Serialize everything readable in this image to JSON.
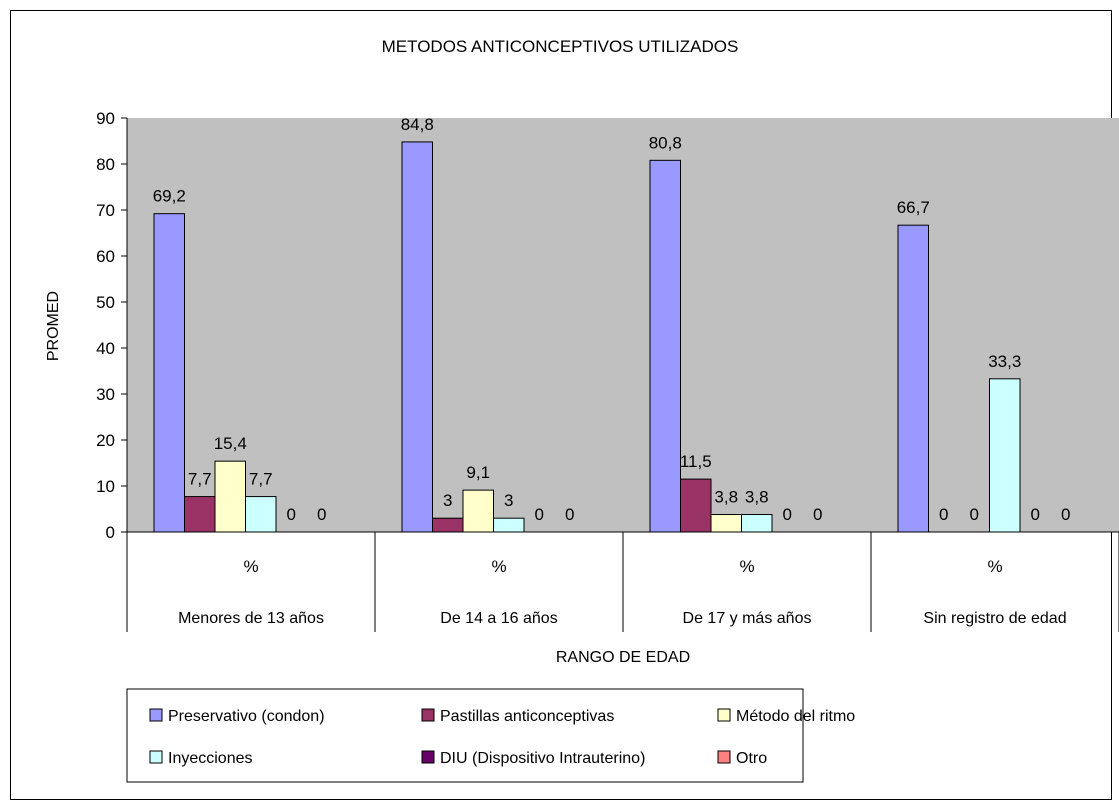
{
  "chart_data": {
    "type": "bar",
    "title": "METODOS ANTICONCEPTIVOS UTILIZADOS",
    "xlabel": "RANGO DE EDAD",
    "ylabel": "PROMED",
    "ylim": [
      0,
      90
    ],
    "yticks": [
      0,
      10,
      20,
      30,
      40,
      50,
      60,
      70,
      80,
      90
    ],
    "plot_background": "#c0c0c0",
    "grid": false,
    "legend_position": "bottom",
    "category_sublabels": [
      "%",
      "%",
      "%",
      "%"
    ],
    "categories": [
      "Menores de 13 años",
      "De 14 a 16 años",
      "De 17 y más años",
      "Sin registro de  edad"
    ],
    "series": [
      {
        "name": "Preservativo (condon)",
        "color": "#9999ff",
        "values": [
          69.2,
          84.8,
          80.8,
          66.7
        ],
        "labels": [
          "69,2",
          "84,8",
          "80,8",
          "66,7"
        ]
      },
      {
        "name": "Pastillas anticonceptivas",
        "color": "#993366",
        "values": [
          7.7,
          3,
          11.5,
          0
        ],
        "labels": [
          "7,7",
          "3",
          "11,5",
          "0"
        ]
      },
      {
        "name": "Método del ritmo",
        "color": "#ffffcc",
        "values": [
          15.4,
          9.1,
          3.8,
          0
        ],
        "labels": [
          "15,4",
          "9,1",
          "3,8",
          "0"
        ]
      },
      {
        "name": "Inyecciones",
        "color": "#ccffff",
        "values": [
          7.7,
          3,
          3.8,
          33.3
        ],
        "labels": [
          "7,7",
          "3",
          "3,8",
          "33,3"
        ]
      },
      {
        "name": "DIU (Dispositivo Intrauterino)",
        "color": "#660066",
        "values": [
          0,
          0,
          0,
          0
        ],
        "labels": [
          "0",
          "0",
          "0",
          "0"
        ]
      },
      {
        "name": "Otro",
        "color": "#ff8080",
        "values": [
          0,
          0,
          0,
          0
        ],
        "labels": [
          "0",
          "0",
          "0",
          "0"
        ]
      }
    ]
  }
}
